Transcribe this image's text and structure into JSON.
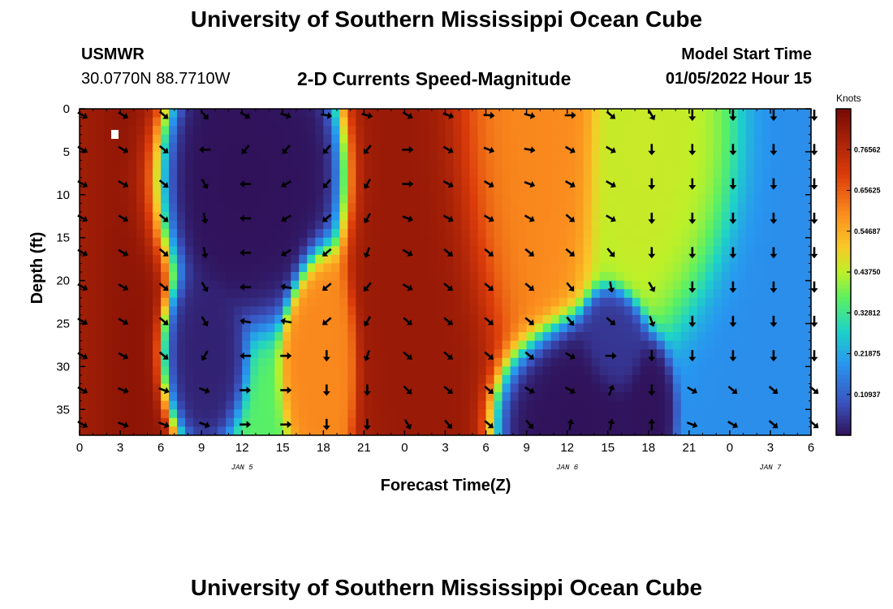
{
  "header": {
    "title": "University of Southern Mississippi Ocean Cube",
    "station_id": "USMWR",
    "station_location": "30.0770N  88.7710W",
    "subtitle": "2-D Currents Speed-Magnitude",
    "model_start_label": "Model Start Time",
    "model_start_value": "01/05/2022 Hour 15"
  },
  "footer": {
    "title": "University of Southern Mississippi Ocean Cube"
  },
  "chart_data": {
    "type": "heatmap",
    "title": "2-D Currents Speed-Magnitude",
    "xlabel": "Forecast Time(Z)",
    "ylabel": "Depth (ft)",
    "x_ticks": [
      "0",
      "3",
      "6",
      "9",
      "12",
      "15",
      "18",
      "21",
      "0",
      "3",
      "6",
      "9",
      "12",
      "15",
      "18",
      "21",
      "0",
      "3",
      "6"
    ],
    "x_range_hours": [
      0,
      54
    ],
    "date_labels": [
      {
        "label": "JAN 5",
        "at_hour": 12
      },
      {
        "label": "JAN 6",
        "at_hour": 36
      },
      {
        "label": "JAN 7",
        "at_hour": 51
      }
    ],
    "y_ticks": [
      0,
      5,
      10,
      15,
      20,
      25,
      30,
      35
    ],
    "ylim": [
      0,
      38
    ],
    "y_inverted": true,
    "colorbar": {
      "label": "Knots",
      "range": [
        0,
        0.875
      ],
      "ticks": [
        "0.76562",
        "0.65625",
        "0.54687",
        "0.43750",
        "0.32812",
        "0.21875",
        "0.10937"
      ],
      "tick_values": [
        0.765625,
        0.65625,
        0.546875,
        0.4375,
        0.328125,
        0.21875,
        0.109375
      ]
    },
    "speed_centers": [
      {
        "hour": 0,
        "depth": 0,
        "speed": 0.8,
        "rh": 3.5,
        "rd": 40
      },
      {
        "hour": 3,
        "depth": 0,
        "speed": 0.85,
        "rh": 2,
        "rd": 40
      },
      {
        "hour": 11,
        "depth": 8,
        "speed": 0.0,
        "rh": 4,
        "rd": 7
      },
      {
        "hour": 8.5,
        "depth": 28,
        "speed": 0.02,
        "rh": 1.5,
        "rd": 5
      },
      {
        "hour": 18,
        "depth": 29,
        "speed": 0.6,
        "rh": 1.2,
        "rd": 6
      },
      {
        "hour": 26,
        "depth": 10,
        "speed": 0.82,
        "rh": 3,
        "rd": 25
      },
      {
        "hour": 31,
        "depth": 0,
        "speed": 0.6,
        "rh": 3,
        "rd": 15
      },
      {
        "hour": 36,
        "depth": 36,
        "speed": 0.0,
        "rh": 3,
        "rd": 5
      },
      {
        "hour": 39.5,
        "depth": 28,
        "speed": 0.05,
        "rh": 1.2,
        "rd": 3
      },
      {
        "hour": 42,
        "depth": 35,
        "speed": 0.0,
        "rh": 1,
        "rd": 4
      },
      {
        "hour": 45,
        "depth": 5,
        "speed": 0.45,
        "rh": 3,
        "rd": 10
      },
      {
        "hour": 52,
        "depth": 20,
        "speed": 0.18,
        "rh": 4,
        "rd": 25
      }
    ],
    "arrow_hours": [
      0,
      3,
      6,
      9,
      12,
      15,
      18,
      21,
      24,
      27,
      30,
      33,
      36,
      39,
      42,
      45,
      48,
      51,
      54
    ],
    "arrow_depths": [
      0,
      4,
      8,
      12,
      16,
      20,
      24,
      28,
      32,
      36
    ],
    "arrow_directions_deg": [
      [
        -30,
        -30,
        -40,
        -50,
        -30,
        -20,
        -10,
        -15,
        -30,
        -20,
        -5,
        -15,
        0,
        -40,
        -60,
        -90,
        -90,
        -90,
        -90
      ],
      [
        -30,
        -30,
        -40,
        -180,
        -130,
        -130,
        -130,
        -130,
        0,
        -30,
        -20,
        -10,
        -30,
        -30,
        -90,
        -90,
        -90,
        -90,
        -90
      ],
      [
        -30,
        -30,
        -40,
        -60,
        180,
        -150,
        -130,
        -120,
        0,
        -30,
        -30,
        -20,
        -30,
        -30,
        -90,
        -90,
        -90,
        -90,
        -90
      ],
      [
        -30,
        -30,
        -40,
        -80,
        180,
        -150,
        -140,
        -120,
        -20,
        -30,
        -30,
        -30,
        -40,
        -30,
        -90,
        -90,
        -90,
        -90,
        -90
      ],
      [
        -30,
        -30,
        -40,
        -80,
        180,
        -150,
        -140,
        -110,
        -30,
        -40,
        -40,
        -40,
        -40,
        -50,
        -90,
        -90,
        -90,
        -90,
        -90
      ],
      [
        -30,
        -30,
        -40,
        -60,
        180,
        170,
        -140,
        -130,
        -30,
        -40,
        -40,
        -40,
        -50,
        -80,
        -60,
        -90,
        -90,
        -90,
        -90
      ],
      [
        -30,
        -30,
        -40,
        -60,
        170,
        170,
        -140,
        -120,
        -40,
        -40,
        -40,
        -40,
        -50,
        -40,
        -70,
        -90,
        -90,
        -90,
        -90
      ],
      [
        -30,
        -30,
        -40,
        -120,
        180,
        0,
        -90,
        -110,
        -40,
        -40,
        -40,
        -40,
        -30,
        0,
        -90,
        -90,
        -90,
        -90,
        -90
      ],
      [
        -30,
        -20,
        -20,
        -20,
        0,
        0,
        -90,
        -90,
        -45,
        -40,
        -40,
        -30,
        -30,
        70,
        -90,
        -30,
        -40,
        -40,
        -40
      ],
      [
        -30,
        -20,
        -20,
        -20,
        0,
        0,
        -90,
        -90,
        -60,
        -50,
        -40,
        -50,
        80,
        80,
        90,
        -20,
        -30,
        -40,
        -40
      ]
    ]
  }
}
